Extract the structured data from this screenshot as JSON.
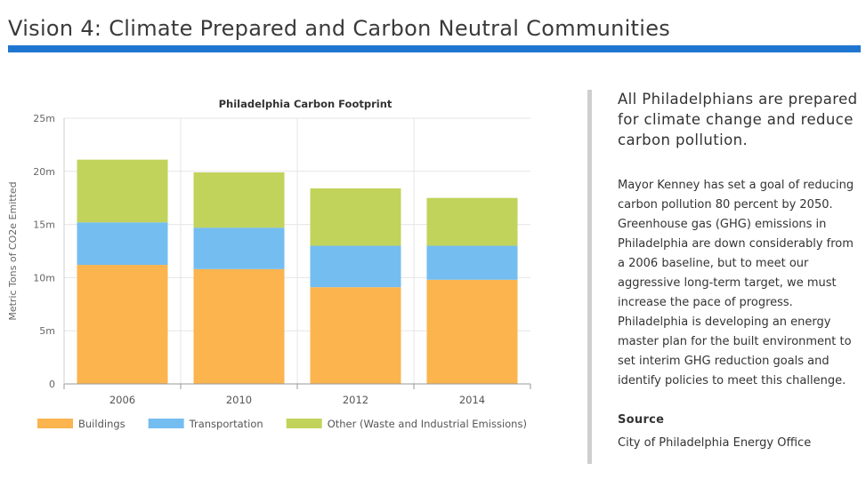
{
  "page": {
    "title": "Vision 4: Climate Prepared and Carbon Neutral Communities"
  },
  "sidebar": {
    "headline": "All Philadelphians are prepared for climate change and reduce carbon pollution.",
    "body": "Mayor Kenney has set a goal of reducing carbon pollution 80 percent by 2050. Greenhouse gas (GHG) emissions in Philadelphia are down considerably from a 2006 baseline, but to meet our aggressive long-term target, we must increase the pace of progress. Philadelphia is developing an energy master plan for the built environment to set interim GHG reduction goals and identify policies to meet this challenge.",
    "source_label": "Source",
    "source_value": "City of Philadelphia Energy Office"
  },
  "colors": {
    "accent": "#1f76d1",
    "buildings": "#fbb44e",
    "transportation": "#74bdf0",
    "other": "#c2d35b"
  },
  "chart_data": {
    "type": "bar",
    "stacked": true,
    "title": "Philadelphia Carbon Footprint",
    "xlabel": "",
    "ylabel": "Metric Tons of CO2e Emitted",
    "categories": [
      "2006",
      "2010",
      "2012",
      "2014"
    ],
    "ylim": [
      0,
      25000000
    ],
    "yticks": [
      0,
      5000000,
      10000000,
      15000000,
      20000000,
      25000000
    ],
    "ytick_labels": [
      "0",
      "5m",
      "10m",
      "15m",
      "20m",
      "25m"
    ],
    "grid": true,
    "legend": "bottom",
    "series": [
      {
        "name": "Buildings",
        "color": "#fbb44e",
        "values": [
          11200000,
          10800000,
          9100000,
          9800000
        ]
      },
      {
        "name": "Transportation",
        "color": "#74bdf0",
        "values": [
          4000000,
          3900000,
          3900000,
          3200000
        ]
      },
      {
        "name": "Other (Waste and Industrial Emissions)",
        "color": "#c2d35b",
        "values": [
          5900000,
          5200000,
          5400000,
          4500000
        ]
      }
    ]
  }
}
